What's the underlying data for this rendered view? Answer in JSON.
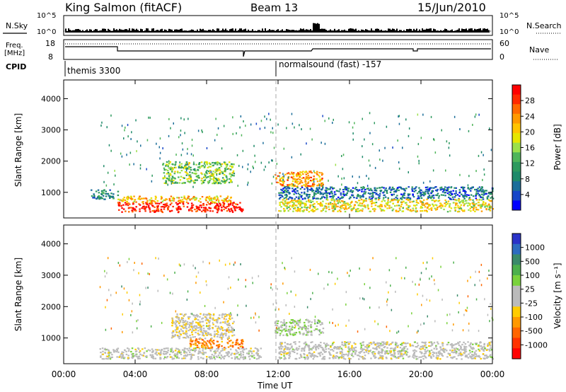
{
  "header": {
    "station": "King Salmon (fitACF)",
    "beam": "Beam 13",
    "date": "15/Jun/2010"
  },
  "top_panels": {
    "nsky_label": "N.Sky",
    "nsearch_label": "N.Search",
    "noise_ticks_left": [
      "10^5",
      "10^0"
    ],
    "noise_ticks_right": [
      "10^5",
      "10^0"
    ],
    "freq_label": "Freq.",
    "freq_unit": "[MHz]",
    "freq_ticks": [
      "18",
      "8"
    ],
    "nave_label": "Nave",
    "nave_ticks": [
      "60",
      "0"
    ],
    "cpid_label": "CPID",
    "cpid_segments": [
      "themis 3300",
      "normalsound (fast) -157"
    ]
  },
  "axes": {
    "ylabel": "Slant Range [km]",
    "yticks": [
      "4000",
      "3000",
      "2000",
      "1000"
    ],
    "xticks": [
      "00:00",
      "04:00",
      "08:00",
      "12:00",
      "16:00",
      "20:00",
      "00:00"
    ],
    "xlabel": "Time UT"
  },
  "colorbars": {
    "power": {
      "label": "Power [dB]",
      "ticks": [
        "28",
        "24",
        "20",
        "16",
        "12",
        "8",
        "4"
      ],
      "colors": [
        "#ff0000",
        "#ff2a00",
        "#ff6a00",
        "#ff9a00",
        "#ffc400",
        "#e6e600",
        "#9be04a",
        "#4fb55a",
        "#2e9a5e",
        "#1f8a6a",
        "#1b6e9a",
        "#1646c8",
        "#0000ff"
      ]
    },
    "velocity": {
      "label": "Velocity [m s⁻¹]",
      "ticks": [
        "1000",
        "500",
        "100",
        "25",
        "-25",
        "-100",
        "-500",
        "-1000"
      ],
      "colors": [
        "#2a33c8",
        "#2d6cc0",
        "#3a8a6a",
        "#4cb04c",
        "#7ad23c",
        "#bbbbbb",
        "#bbbbbb",
        "#ffcc00",
        "#ff9900",
        "#ff6600",
        "#ff3300",
        "#ff0000"
      ]
    }
  },
  "chart_data": [
    {
      "type": "heatmap",
      "title": "Power",
      "xlabel": "Time UT",
      "ylabel": "Slant Range [km]",
      "xlim": [
        "00:00",
        "24:00"
      ],
      "ylim": [
        180,
        4600
      ],
      "zlabel": "Power [dB]",
      "zlim": [
        0,
        30
      ],
      "regions": [
        {
          "t": [
            3.0,
            10.0
          ],
          "r": [
            380,
            700
          ],
          "value": 28
        },
        {
          "t": [
            3.0,
            9.5
          ],
          "r": [
            700,
            900
          ],
          "value": 20
        },
        {
          "t": [
            1.5,
            3.0
          ],
          "r": [
            800,
            1100
          ],
          "value": 8
        },
        {
          "t": [
            5.5,
            9.5
          ],
          "r": [
            1300,
            2000
          ],
          "value": 14
        },
        {
          "t": [
            11.8,
            14.5
          ],
          "r": [
            1200,
            1700
          ],
          "value": 22
        },
        {
          "t": [
            12.0,
            24.0
          ],
          "r": [
            800,
            1200
          ],
          "value": 6
        },
        {
          "t": [
            12.0,
            24.0
          ],
          "r": [
            400,
            800
          ],
          "value": 18
        }
      ]
    },
    {
      "type": "heatmap",
      "title": "Velocity",
      "xlabel": "Time UT",
      "ylabel": "Slant Range [km]",
      "xlim": [
        "00:00",
        "24:00"
      ],
      "ylim": [
        180,
        4600
      ],
      "zlabel": "Velocity [m s⁻¹]",
      "zlim": [
        -1000,
        1000
      ],
      "regions": [
        {
          "t": [
            2.0,
            11.0
          ],
          "r": [
            350,
            700
          ],
          "value": 0
        },
        {
          "t": [
            7.0,
            10.0
          ],
          "r": [
            700,
            1000
          ],
          "value": -500
        },
        {
          "t": [
            6.0,
            9.5
          ],
          "r": [
            1000,
            1800
          ],
          "value": -100
        },
        {
          "t": [
            11.8,
            14.5
          ],
          "r": [
            1100,
            1600
          ],
          "value": 100
        },
        {
          "t": [
            12.0,
            24.0
          ],
          "r": [
            350,
            900
          ],
          "value": 0
        }
      ]
    }
  ]
}
